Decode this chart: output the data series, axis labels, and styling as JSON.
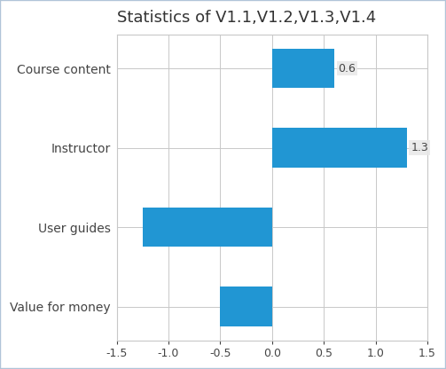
{
  "title": "Statistics of V1.1,V1.2,V1.3,V1.4",
  "categories": [
    "Course content",
    "Instructor",
    "User guides",
    "Value for money"
  ],
  "values": [
    0.6,
    1.3,
    -1.25,
    -0.5
  ],
  "bar_color": "#2196d3",
  "xlim": [
    -1.5,
    1.5
  ],
  "xticks": [
    -1.5,
    -1.0,
    -0.5,
    0.0,
    0.5,
    1.0,
    1.5
  ],
  "xtick_labels": [
    "-1.5",
    "-1.0",
    "-0.5",
    "0.0",
    "0.5",
    "1.0",
    "1.5"
  ],
  "value_labels": {
    "Instructor": "1.3",
    "Course content": "0.6"
  },
  "fig_bg_color": "#ffffff",
  "axes_bg_color": "#ffffff",
  "border_color": "#b0c4d8",
  "grid_color": "#c8c8c8",
  "title_fontsize": 13,
  "tick_fontsize": 9,
  "label_fontsize": 10,
  "bar_height": 0.5
}
